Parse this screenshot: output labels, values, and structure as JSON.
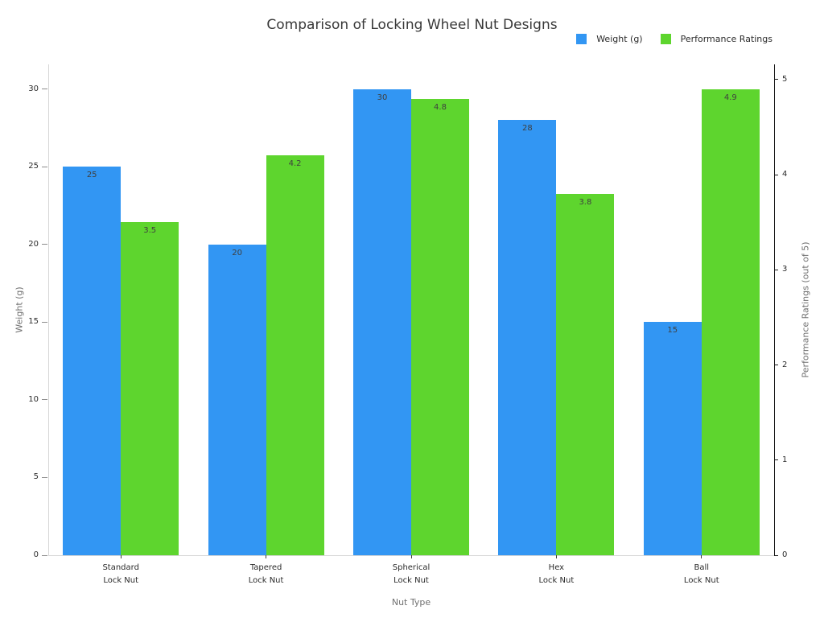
{
  "title": "Comparison of Locking Wheel Nut Designs",
  "legend": [
    {
      "label": "Weight (g)",
      "color": "#3296F3"
    },
    {
      "label": "Performance Ratings",
      "color": "#5ED52E"
    }
  ],
  "axes": {
    "xlabel": "Nut Type",
    "ylabel_left": "Weight (g)",
    "ylabel_right": "Performance Ratings (out of 5)"
  },
  "chart_data": {
    "type": "bar",
    "title": "Comparison of Locking Wheel Nut Designs",
    "xlabel": "Nut Type",
    "ylabel_left": "Weight (g)",
    "ylabel_right": "Performance Ratings (out of 5)",
    "categories": [
      {
        "line1": "Standard",
        "line2": "Lock Nut"
      },
      {
        "line1": "Tapered",
        "line2": "Lock Nut"
      },
      {
        "line1": "Spherical",
        "line2": "Lock Nut"
      },
      {
        "line1": "Hex",
        "line2": "Lock Nut"
      },
      {
        "line1": "Ball",
        "line2": "Lock Nut"
      }
    ],
    "series": [
      {
        "name": "Weight (g)",
        "axis": "left",
        "color": "#3296F3",
        "values": [
          25,
          20,
          30,
          28,
          15
        ]
      },
      {
        "name": "Performance Ratings",
        "axis": "right",
        "color": "#5ED52E",
        "values": [
          3.5,
          4.2,
          4.8,
          3.8,
          4.9
        ]
      }
    ],
    "yticks_left": [
      0,
      5,
      10,
      15,
      20,
      25,
      30
    ],
    "yticks_right": [
      0,
      1,
      2,
      3,
      4,
      5
    ],
    "ylim_left": [
      0,
      31.6
    ],
    "ylim_right": [
      0,
      5.16
    ],
    "grid": false,
    "legend_position": "top-right",
    "bar_value_labels": true
  }
}
